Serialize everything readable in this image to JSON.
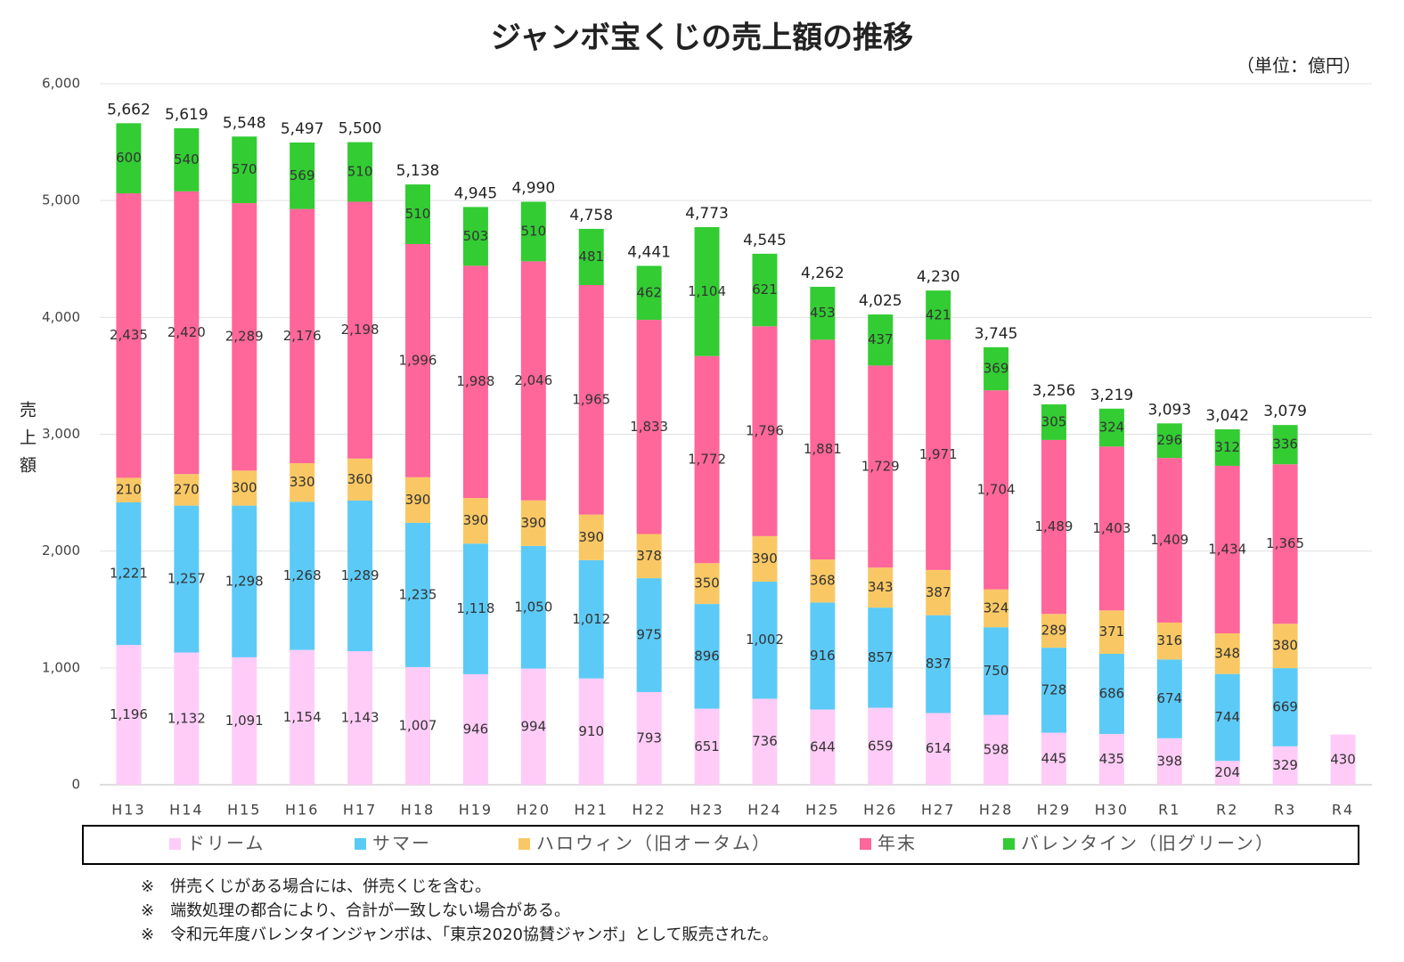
{
  "chart_data": {
    "type": "stacked_bar",
    "title": "ジャンボ宝くじの売上額の推移",
    "unit_note": "（単位：億円）",
    "y_label": "売上額",
    "categories": [
      "H13",
      "H14",
      "H15",
      "H16",
      "H17",
      "H18",
      "H19",
      "H20",
      "H21",
      "H22",
      "H23",
      "H24",
      "H25",
      "H26",
      "H27",
      "H28",
      "H29",
      "H30",
      "R1",
      "R2",
      "R3",
      "R4"
    ],
    "series": [
      {
        "name": "ドリーム",
        "color": "#ffccf7",
        "values": [
          1196,
          1132,
          1091,
          1154,
          1143,
          1007,
          946,
          994,
          910,
          793,
          651,
          736,
          644,
          659,
          614,
          598,
          445,
          435,
          398,
          204,
          329,
          430
        ],
        "value_labels": [
          "1,196",
          "1,132",
          "1,091",
          "1,154",
          "1,143",
          "1,007",
          "946",
          "994",
          "910",
          "793",
          "651",
          "736",
          "644",
          "659",
          "614",
          "598",
          "445",
          "435",
          "398",
          "204",
          "329",
          "430"
        ]
      },
      {
        "name": "サマー",
        "color": "#5ccaf7",
        "values": [
          1221,
          1257,
          1298,
          1268,
          1289,
          1235,
          1118,
          1050,
          1012,
          975,
          896,
          1002,
          916,
          857,
          837,
          750,
          728,
          686,
          674,
          744,
          669,
          null
        ],
        "value_labels": [
          "1,221",
          "1,257",
          "1,298",
          "1,268",
          "1,289",
          "1,235",
          "1,118",
          "1,050",
          "1,012",
          "975",
          "896",
          "1,002",
          "916",
          "857",
          "837",
          "750",
          "728",
          "686",
          "674",
          "744",
          "669",
          null
        ]
      },
      {
        "name": "ハロウィン（旧オータム）",
        "color": "#f9c864",
        "values": [
          210,
          270,
          300,
          330,
          360,
          390,
          390,
          390,
          390,
          378,
          350,
          390,
          368,
          343,
          387,
          324,
          289,
          371,
          316,
          348,
          380,
          null
        ],
        "value_labels": [
          "210",
          "270",
          "300",
          "330",
          "360",
          "390",
          "390",
          "390",
          "390",
          "378",
          "350",
          "390",
          "368",
          "343",
          "387",
          "324",
          "289",
          "371",
          "316",
          "348",
          "380",
          null
        ]
      },
      {
        "name": "年末",
        "color": "#ff6699",
        "values": [
          2435,
          2420,
          2289,
          2176,
          2198,
          1996,
          1988,
          2046,
          1965,
          1833,
          1772,
          1796,
          1881,
          1729,
          1971,
          1704,
          1489,
          1403,
          1409,
          1434,
          1365,
          null
        ],
        "value_labels": [
          "2,435",
          "2,420",
          "2,289",
          "2,176",
          "2,198",
          "1,996",
          "1,988",
          "2,046",
          "1,965",
          "1,833",
          "1,772",
          "1,796",
          "1,881",
          "1,729",
          "1,971",
          "1,704",
          "1,489",
          "1,403",
          "1,409",
          "1,434",
          "1,365",
          null
        ]
      },
      {
        "name": "バレンタイン（旧グリーン）",
        "color": "#33cc33",
        "values": [
          600,
          540,
          570,
          569,
          510,
          510,
          503,
          510,
          481,
          462,
          1104,
          621,
          453,
          437,
          421,
          369,
          305,
          324,
          296,
          312,
          336,
          null
        ],
        "value_labels": [
          "600",
          "540",
          "570",
          "569",
          "510",
          "510",
          "503",
          "510",
          "481",
          "462",
          "1,104",
          "621",
          "453",
          "437",
          "421",
          "369",
          "305",
          "324",
          "296",
          "312",
          "336",
          null
        ]
      }
    ],
    "totals": {
      "values": [
        5662,
        5619,
        5548,
        5497,
        5500,
        5138,
        4945,
        4990,
        4758,
        4441,
        4773,
        4545,
        4262,
        4025,
        4230,
        3745,
        3256,
        3219,
        3093,
        3042,
        3079,
        null
      ],
      "value_labels": [
        "5,662",
        "5,619",
        "5,548",
        "5,497",
        "5,500",
        "5,138",
        "4,945",
        "4,990",
        "4,758",
        "4,441",
        "4,773",
        "4,545",
        "4,262",
        "4,025",
        "4,230",
        "3,745",
        "3,256",
        "3,219",
        "3,093",
        "3,042",
        "3,079",
        null
      ]
    },
    "ylim": [
      0,
      6000
    ],
    "yticks": [
      0,
      {
        "value": 1000,
        "label": "1,000"
      },
      {
        "value": 2000,
        "label": "2,000"
      },
      {
        "value": 3000,
        "label": "3,000"
      },
      {
        "value": 4000,
        "label": "4,000"
      },
      {
        "value": 5000,
        "label": "5,000"
      },
      {
        "value": 6000,
        "label": "6,000"
      }
    ],
    "grid": true,
    "legend": "bottom",
    "notes": [
      "※　併売くじがある場合には、併売くじを含む。",
      "※　端数処理の都合により、合計が一致しない場合がある。",
      "※　令和元年度バレンタインジャンボは、「東京2020協賛ジャンボ」として販売された。"
    ]
  }
}
